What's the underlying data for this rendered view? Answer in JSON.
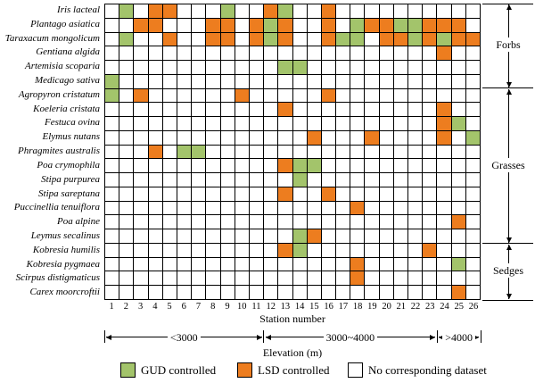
{
  "figure": {
    "xlabel": "Station number",
    "elevation_label": "Elevation (m)"
  },
  "chart_data": {
    "type": "heatmap",
    "xlabel": "Station number",
    "elevation_axis_label": "Elevation (m)",
    "stations": [
      1,
      2,
      3,
      4,
      5,
      6,
      7,
      8,
      9,
      10,
      11,
      12,
      13,
      14,
      15,
      16,
      17,
      18,
      19,
      20,
      21,
      22,
      23,
      24,
      25,
      26
    ],
    "colors": {
      "gud": "#A3C46B",
      "lsd": "#ED7D1F",
      "none": "#FFFFFF",
      "grid_line": "#000000"
    },
    "legend": [
      {
        "key": "gud",
        "label": "GUD controlled"
      },
      {
        "key": "lsd",
        "label": "LSD controlled"
      },
      {
        "key": "none",
        "label": "No corresponding dataset"
      }
    ],
    "row_groups": [
      {
        "label": "Forbs",
        "count": 6
      },
      {
        "label": "Grasses",
        "count": 11
      },
      {
        "label": "Sedges",
        "count": 4
      }
    ],
    "elevation_groups": [
      {
        "label": "<3000",
        "from_station": 1,
        "to_station": 11
      },
      {
        "label": "3000~4000",
        "from_station": 12,
        "to_station": 23
      },
      {
        "label": ">4000",
        "from_station": 24,
        "to_station": 26
      }
    ],
    "species": [
      {
        "name": "Iris lacteal",
        "group": "Forbs",
        "gud": [
          2,
          9,
          13
        ],
        "lsd": [
          4,
          5,
          12,
          16
        ]
      },
      {
        "name": "Plantago asiatica",
        "group": "Forbs",
        "gud": [
          12,
          18,
          21,
          22
        ],
        "lsd": [
          3,
          4,
          8,
          9,
          11,
          13,
          16,
          19,
          20,
          23,
          24,
          25
        ]
      },
      {
        "name": "Taraxacum mongolicum",
        "group": "Forbs",
        "gud": [
          2,
          12,
          17,
          18,
          22,
          24
        ],
        "lsd": [
          5,
          8,
          9,
          11,
          13,
          16,
          20,
          21,
          23,
          25,
          26
        ]
      },
      {
        "name": "Gentiana algida",
        "group": "Forbs",
        "gud": [],
        "lsd": [
          24
        ]
      },
      {
        "name": "Artemisia scoparia",
        "group": "Forbs",
        "gud": [
          13,
          14
        ],
        "lsd": []
      },
      {
        "name": "Medicago sativa",
        "group": "Forbs",
        "gud": [
          1
        ],
        "lsd": []
      },
      {
        "name": "Agropyron cristatum",
        "group": "Grasses",
        "gud": [
          1
        ],
        "lsd": [
          3,
          10,
          16
        ]
      },
      {
        "name": "Koeleria cristata",
        "group": "Grasses",
        "gud": [],
        "lsd": [
          13,
          24
        ]
      },
      {
        "name": "Festuca ovina",
        "group": "Grasses",
        "gud": [
          25
        ],
        "lsd": [
          24
        ]
      },
      {
        "name": "Elymus nutans",
        "group": "Grasses",
        "gud": [
          26
        ],
        "lsd": [
          15,
          19,
          24
        ]
      },
      {
        "name": "Phragmites australis",
        "group": "Grasses",
        "gud": [
          6,
          7
        ],
        "lsd": [
          4
        ]
      },
      {
        "name": "Poa crymophila",
        "group": "Grasses",
        "gud": [
          14,
          15
        ],
        "lsd": [
          13
        ]
      },
      {
        "name": "Stipa purpurea",
        "group": "Grasses",
        "gud": [
          14
        ],
        "lsd": []
      },
      {
        "name": "Stipa sareptana",
        "group": "Grasses",
        "gud": [],
        "lsd": [
          13,
          16
        ]
      },
      {
        "name": "Puccinellia tenuiflora",
        "group": "Grasses",
        "gud": [],
        "lsd": [
          18
        ]
      },
      {
        "name": "Poa alpine",
        "group": "Grasses",
        "gud": [],
        "lsd": [
          25
        ]
      },
      {
        "name": "Leymus secalinus",
        "group": "Grasses",
        "gud": [
          14
        ],
        "lsd": [
          15
        ]
      },
      {
        "name": "Kobresia humilis",
        "group": "Sedges",
        "gud": [
          14
        ],
        "lsd": [
          13,
          23
        ]
      },
      {
        "name": "Kobresia pygmaea",
        "group": "Sedges",
        "gud": [
          25
        ],
        "lsd": [
          18
        ]
      },
      {
        "name": "Scirpus distigmaticus",
        "group": "Sedges",
        "gud": [],
        "lsd": [
          18
        ]
      },
      {
        "name": "Carex moorcroftii",
        "group": "Sedges",
        "gud": [],
        "lsd": [
          25
        ]
      }
    ]
  }
}
